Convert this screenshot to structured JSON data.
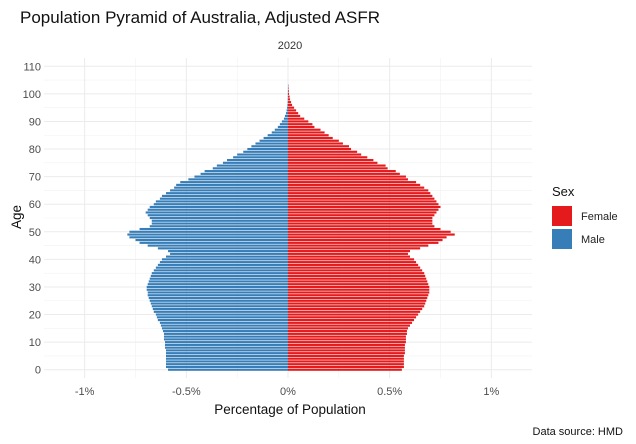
{
  "chart_data": {
    "type": "bar",
    "orientation": "horizontal",
    "title": "Population Pyramid of Australia, Adjusted ASFR",
    "facet": "2020",
    "xlabel": "Percentage of Population",
    "ylabel": "Age",
    "caption": "Data source: HMD",
    "xlim": [
      -1.2,
      1.2
    ],
    "ylim": [
      -3,
      113
    ],
    "x_ticks": [
      -1,
      -0.5,
      0,
      0.5,
      1
    ],
    "x_tick_labels": [
      "-1%",
      "-0.5%",
      "0%",
      "0.5%",
      "1%"
    ],
    "y_ticks": [
      0,
      10,
      20,
      30,
      40,
      50,
      60,
      70,
      80,
      90,
      100,
      110
    ],
    "y_tick_labels": [
      "0",
      "10",
      "20",
      "30",
      "40",
      "50",
      "60",
      "70",
      "80",
      "90",
      "100",
      "110"
    ],
    "grid": true,
    "legend": {
      "title": "Sex",
      "position": "right",
      "entries": [
        {
          "label": "Female",
          "color": "#e41a1c"
        },
        {
          "label": "Male",
          "color": "#377eb8"
        }
      ]
    },
    "ages": [
      0,
      1,
      2,
      3,
      4,
      5,
      6,
      7,
      8,
      9,
      10,
      11,
      12,
      13,
      14,
      15,
      16,
      17,
      18,
      19,
      20,
      21,
      22,
      23,
      24,
      25,
      26,
      27,
      28,
      29,
      30,
      31,
      32,
      33,
      34,
      35,
      36,
      37,
      38,
      39,
      40,
      41,
      42,
      43,
      44,
      45,
      46,
      47,
      48,
      49,
      50,
      51,
      52,
      53,
      54,
      55,
      56,
      57,
      58,
      59,
      60,
      61,
      62,
      63,
      64,
      65,
      66,
      67,
      68,
      69,
      70,
      71,
      72,
      73,
      74,
      75,
      76,
      77,
      78,
      79,
      80,
      81,
      82,
      83,
      84,
      85,
      86,
      87,
      88,
      89,
      90,
      91,
      92,
      93,
      94,
      95,
      96,
      97,
      98,
      99,
      100,
      101,
      102,
      103
    ],
    "series": [
      {
        "name": "Female",
        "color": "#e41a1c",
        "sign": 1,
        "values": [
          0.56,
          0.57,
          0.57,
          0.57,
          0.57,
          0.57,
          0.575,
          0.575,
          0.575,
          0.575,
          0.58,
          0.58,
          0.58,
          0.585,
          0.585,
          0.59,
          0.6,
          0.61,
          0.62,
          0.63,
          0.64,
          0.65,
          0.66,
          0.67,
          0.675,
          0.68,
          0.685,
          0.69,
          0.695,
          0.695,
          0.695,
          0.69,
          0.685,
          0.68,
          0.675,
          0.67,
          0.66,
          0.65,
          0.64,
          0.63,
          0.62,
          0.6,
          0.59,
          0.6,
          0.65,
          0.69,
          0.74,
          0.76,
          0.78,
          0.82,
          0.8,
          0.75,
          0.72,
          0.71,
          0.71,
          0.71,
          0.72,
          0.73,
          0.74,
          0.75,
          0.74,
          0.73,
          0.72,
          0.71,
          0.7,
          0.69,
          0.67,
          0.65,
          0.63,
          0.59,
          0.58,
          0.55,
          0.53,
          0.49,
          0.48,
          0.44,
          0.42,
          0.39,
          0.36,
          0.34,
          0.31,
          0.3,
          0.27,
          0.25,
          0.22,
          0.2,
          0.18,
          0.16,
          0.13,
          0.12,
          0.1,
          0.08,
          0.06,
          0.05,
          0.04,
          0.03,
          0.02,
          0.015,
          0.01,
          0.008,
          0.005,
          0.004,
          0.003,
          0.002
        ]
      },
      {
        "name": "Male",
        "color": "#377eb8",
        "sign": -1,
        "values": [
          0.59,
          0.6,
          0.6,
          0.6,
          0.6,
          0.6,
          0.6,
          0.6,
          0.605,
          0.605,
          0.605,
          0.61,
          0.61,
          0.61,
          0.615,
          0.62,
          0.625,
          0.63,
          0.64,
          0.645,
          0.65,
          0.66,
          0.665,
          0.67,
          0.675,
          0.68,
          0.685,
          0.69,
          0.69,
          0.695,
          0.695,
          0.69,
          0.685,
          0.68,
          0.675,
          0.67,
          0.66,
          0.65,
          0.64,
          0.63,
          0.62,
          0.6,
          0.58,
          0.59,
          0.64,
          0.69,
          0.73,
          0.75,
          0.78,
          0.79,
          0.78,
          0.73,
          0.68,
          0.67,
          0.67,
          0.68,
          0.69,
          0.7,
          0.69,
          0.68,
          0.66,
          0.65,
          0.63,
          0.62,
          0.6,
          0.58,
          0.56,
          0.55,
          0.53,
          0.49,
          0.46,
          0.43,
          0.41,
          0.37,
          0.35,
          0.32,
          0.3,
          0.27,
          0.25,
          0.22,
          0.2,
          0.18,
          0.16,
          0.14,
          0.12,
          0.1,
          0.08,
          0.065,
          0.05,
          0.04,
          0.03,
          0.02,
          0.015,
          0.01,
          0.007,
          0.005,
          0.003,
          0.002,
          0.0015,
          0.001,
          0.0008,
          0.0005,
          0.0003,
          0.0002
        ]
      }
    ]
  }
}
